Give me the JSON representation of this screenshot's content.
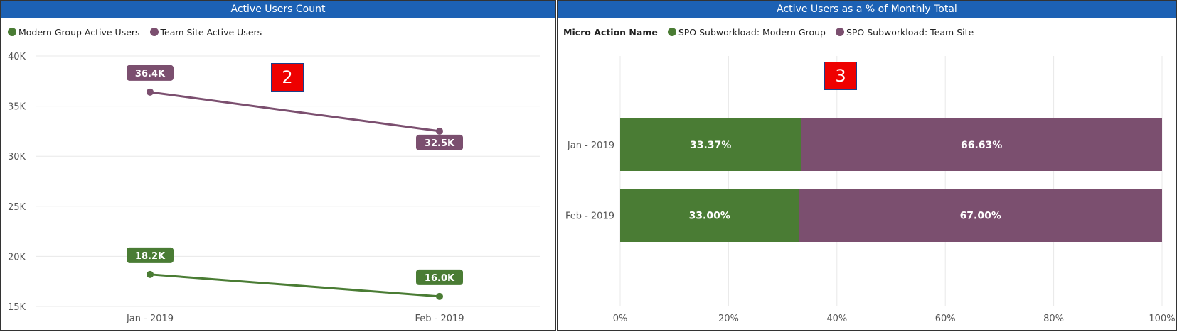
{
  "panels": {
    "left": {
      "title": "Active Users Count",
      "badge": "2"
    },
    "right": {
      "title": "Active Users as a % of Monthly Total",
      "badge": "3",
      "legend_title": "Micro Action Name"
    }
  },
  "colors": {
    "green": "#4a7c34",
    "purple": "#7b4f6f",
    "title_bar": "#1c61b4",
    "grid": "#e8e8e8",
    "badge_red": "#ee0000"
  },
  "chart_data": [
    {
      "type": "line",
      "title": "Active Users Count",
      "categories": [
        "Jan - 2019",
        "Feb - 2019"
      ],
      "series": [
        {
          "name": "Modern Group Active Users",
          "values": [
            18200,
            16000
          ],
          "labels": [
            "18.2K",
            "16.0K"
          ],
          "color": "#4a7c34"
        },
        {
          "name": "Team Site Active Users",
          "values": [
            36400,
            32500
          ],
          "labels": [
            "36.4K",
            "32.5K"
          ],
          "color": "#7b4f6f"
        }
      ],
      "ylim": [
        15000,
        40000
      ],
      "yticks": [
        {
          "value": 40000,
          "label": "40K"
        },
        {
          "value": 35000,
          "label": "35K"
        },
        {
          "value": 30000,
          "label": "30K"
        },
        {
          "value": 25000,
          "label": "25K"
        },
        {
          "value": 20000,
          "label": "20K"
        },
        {
          "value": 15000,
          "label": "15K"
        }
      ],
      "grid": true,
      "legend": "top-left"
    },
    {
      "type": "bar",
      "orientation": "horizontal",
      "stacked": "100%",
      "title": "Active Users as a % of Monthly Total",
      "categories": [
        "Jan - 2019",
        "Feb - 2019"
      ],
      "series": [
        {
          "name": "SPO Subworkload: Modern Group",
          "values": [
            33.37,
            33.0
          ],
          "labels": [
            "33.37%",
            "33.00%"
          ],
          "color": "#4a7c34"
        },
        {
          "name": "SPO Subworkload: Team Site",
          "values": [
            66.63,
            67.0
          ],
          "labels": [
            "66.63%",
            "67.00%"
          ],
          "color": "#7b4f6f"
        }
      ],
      "xlim": [
        0,
        100
      ],
      "xticks": [
        {
          "value": 0,
          "label": "0%"
        },
        {
          "value": 20,
          "label": "20%"
        },
        {
          "value": 40,
          "label": "40%"
        },
        {
          "value": 60,
          "label": "60%"
        },
        {
          "value": 80,
          "label": "80%"
        },
        {
          "value": 100,
          "label": "100%"
        }
      ],
      "grid": true,
      "legend": "top-left"
    }
  ]
}
